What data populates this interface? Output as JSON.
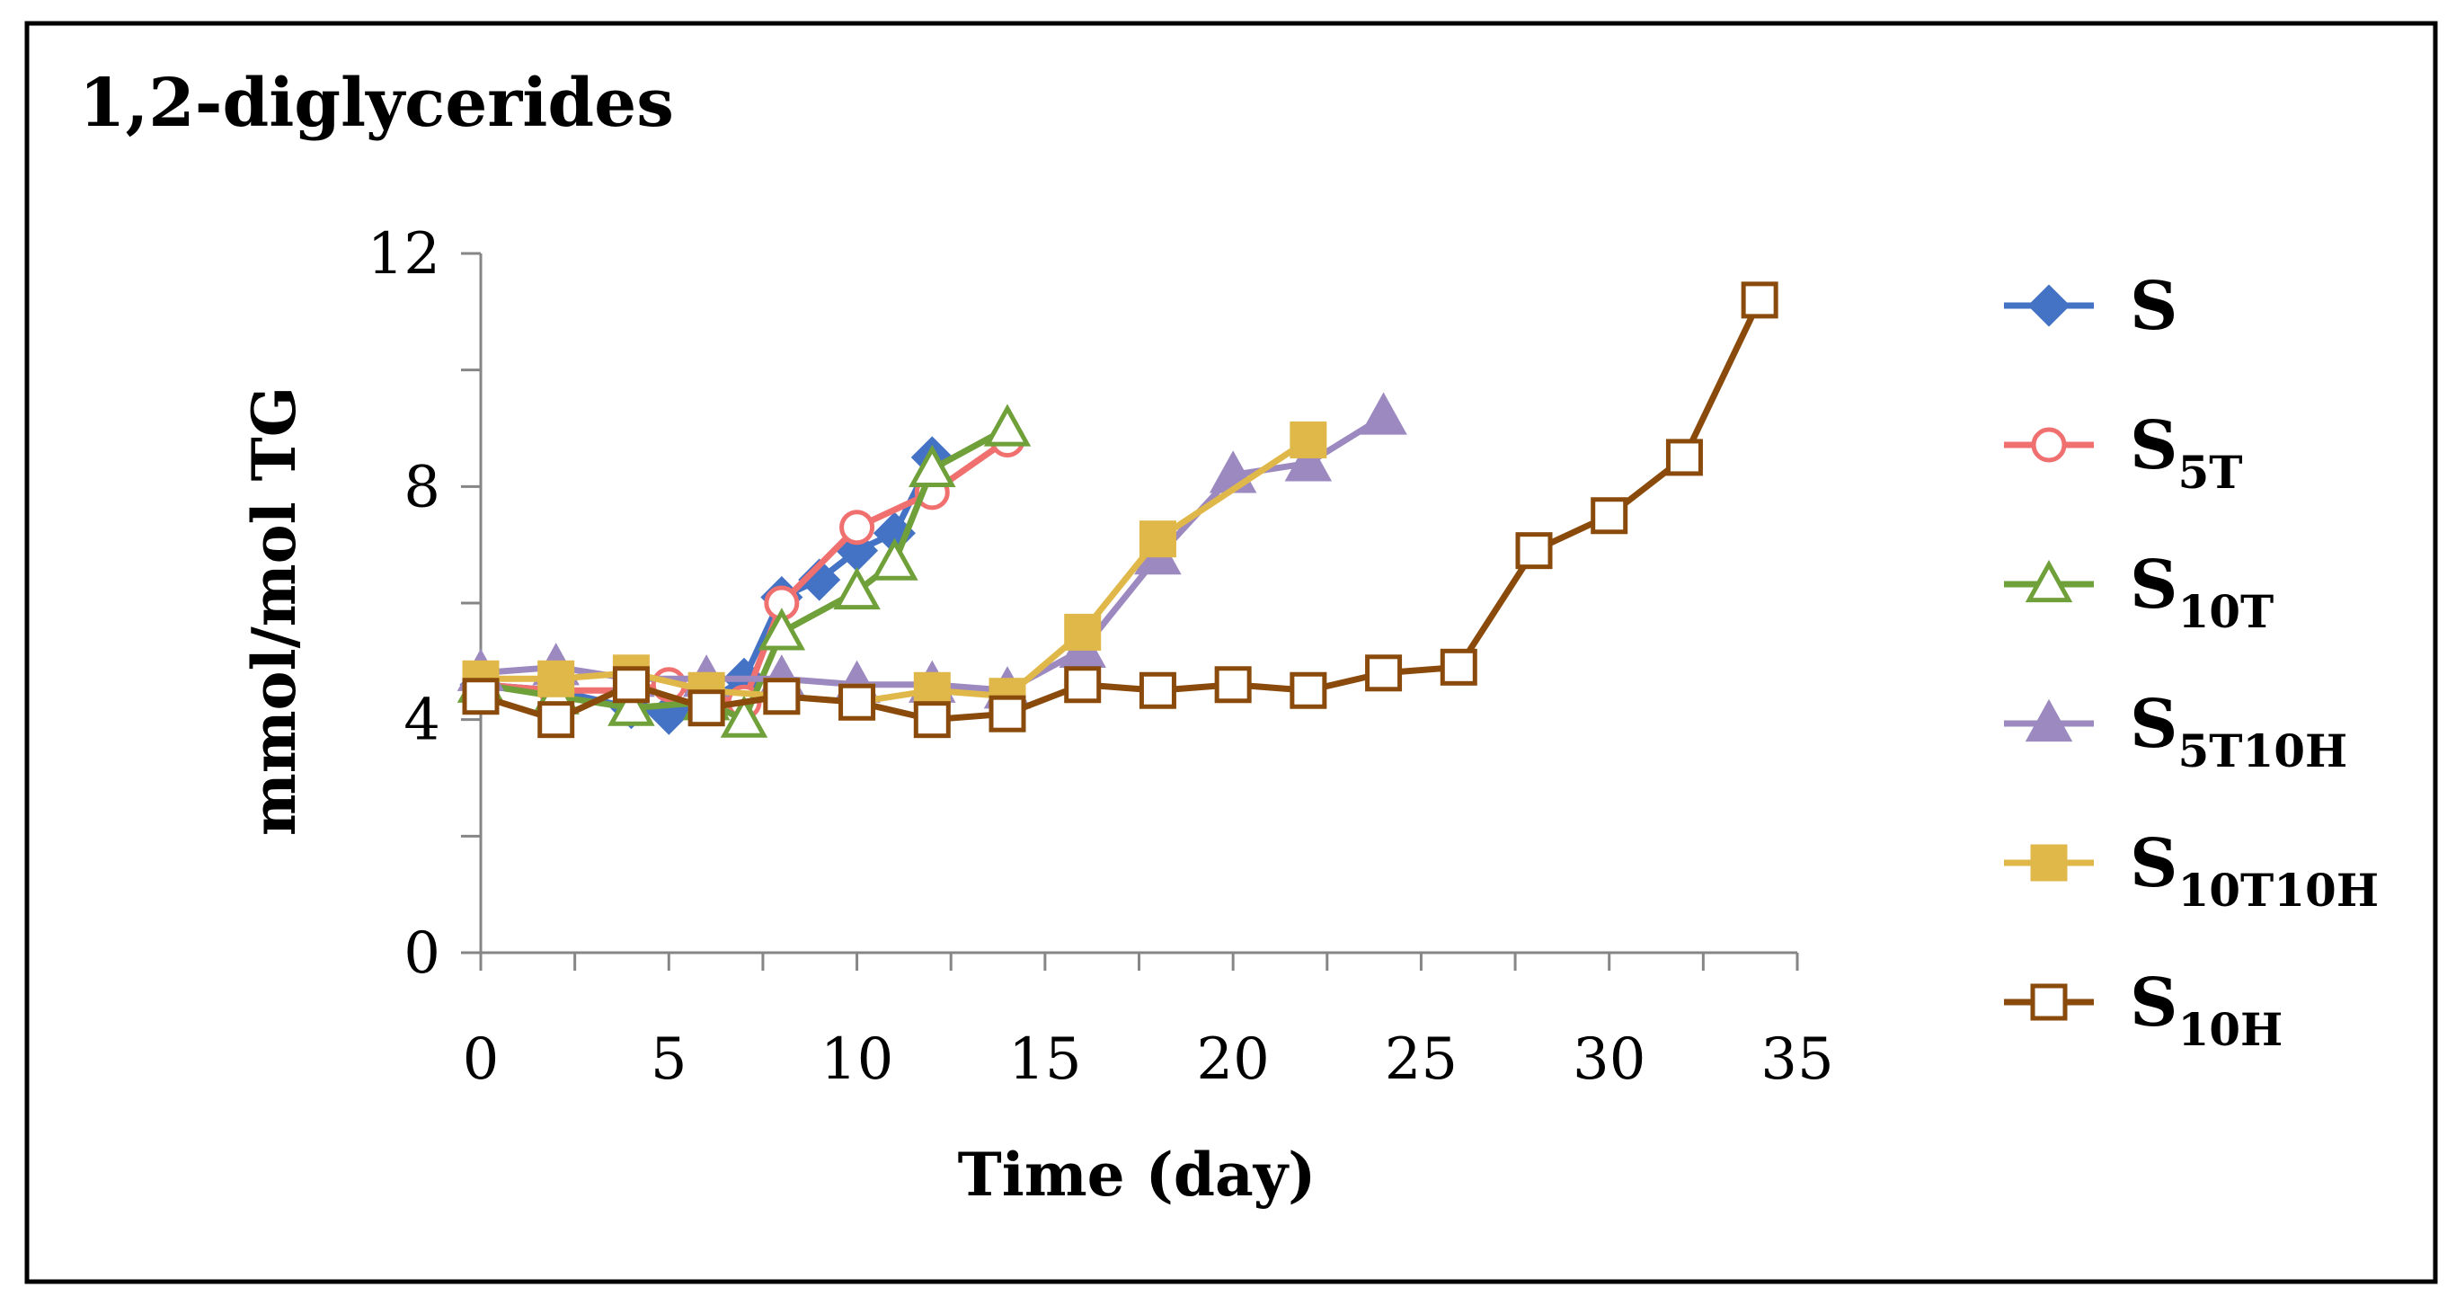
{
  "chart_data": {
    "type": "line",
    "title": "1,2-diglycerides",
    "xlabel": "Time (day)",
    "ylabel": "mmol/mol TG",
    "xlim": [
      0,
      35
    ],
    "ylim": [
      0,
      12
    ],
    "xticks": [
      0,
      5,
      10,
      15,
      20,
      25,
      30,
      35
    ],
    "yticks": [
      0,
      4,
      8,
      12
    ],
    "grid": false,
    "legend_position": "right",
    "series": [
      {
        "name": "S",
        "base": "S",
        "sub": "",
        "color": "#4472c4",
        "marker": "diamond",
        "filled": true,
        "x": [
          0,
          2,
          4,
          5,
          6,
          7,
          8,
          9,
          10,
          11,
          12
        ],
        "y": [
          4.6,
          4.5,
          4.2,
          4.1,
          4.3,
          4.7,
          6.1,
          6.4,
          6.9,
          7.2,
          8.5
        ]
      },
      {
        "name": "S5T",
        "base": "S",
        "sub": "5T",
        "color": "#f07070",
        "marker": "circle",
        "filled": false,
        "x": [
          0,
          2,
          4,
          5,
          6,
          7,
          8,
          10,
          12,
          14
        ],
        "y": [
          4.6,
          4.5,
          4.5,
          4.6,
          4.4,
          4.3,
          6.0,
          7.3,
          7.9,
          8.8
        ]
      },
      {
        "name": "S10T",
        "base": "S",
        "sub": "10T",
        "color": "#70a03a",
        "marker": "triangle",
        "filled": false,
        "x": [
          0,
          2,
          4,
          6,
          7,
          8,
          10,
          11,
          12,
          14
        ],
        "y": [
          4.6,
          4.4,
          4.2,
          4.3,
          4.0,
          5.5,
          6.2,
          6.7,
          8.3,
          9.0
        ]
      },
      {
        "name": "S5T10H",
        "base": "S",
        "sub": "5T10H",
        "color": "#9b89c0",
        "marker": "triangle",
        "filled": true,
        "x": [
          0,
          2,
          4,
          6,
          8,
          10,
          12,
          14,
          16,
          18,
          20,
          22,
          24
        ],
        "y": [
          4.8,
          4.9,
          4.7,
          4.7,
          4.7,
          4.6,
          4.6,
          4.5,
          5.2,
          6.8,
          8.2,
          8.4,
          9.2
        ]
      },
      {
        "name": "S10T10H",
        "base": "S",
        "sub": "10T10H",
        "color": "#e0b84a",
        "marker": "square",
        "filled": true,
        "x": [
          0,
          2,
          4,
          6,
          8,
          10,
          12,
          14,
          16,
          18,
          22
        ],
        "y": [
          4.7,
          4.7,
          4.8,
          4.5,
          4.4,
          4.3,
          4.5,
          4.4,
          5.5,
          7.1,
          8.8
        ]
      },
      {
        "name": "S10H",
        "base": "S",
        "sub": "10H",
        "color": "#8a4a0c",
        "marker": "square",
        "filled": false,
        "x": [
          0,
          2,
          4,
          6,
          8,
          10,
          12,
          14,
          16,
          18,
          20,
          22,
          24,
          26,
          28,
          30,
          32,
          34
        ],
        "y": [
          4.4,
          4.0,
          4.6,
          4.2,
          4.4,
          4.3,
          4.0,
          4.1,
          4.6,
          4.5,
          4.6,
          4.5,
          4.8,
          4.9,
          6.9,
          7.5,
          8.5,
          11.2
        ]
      }
    ]
  }
}
